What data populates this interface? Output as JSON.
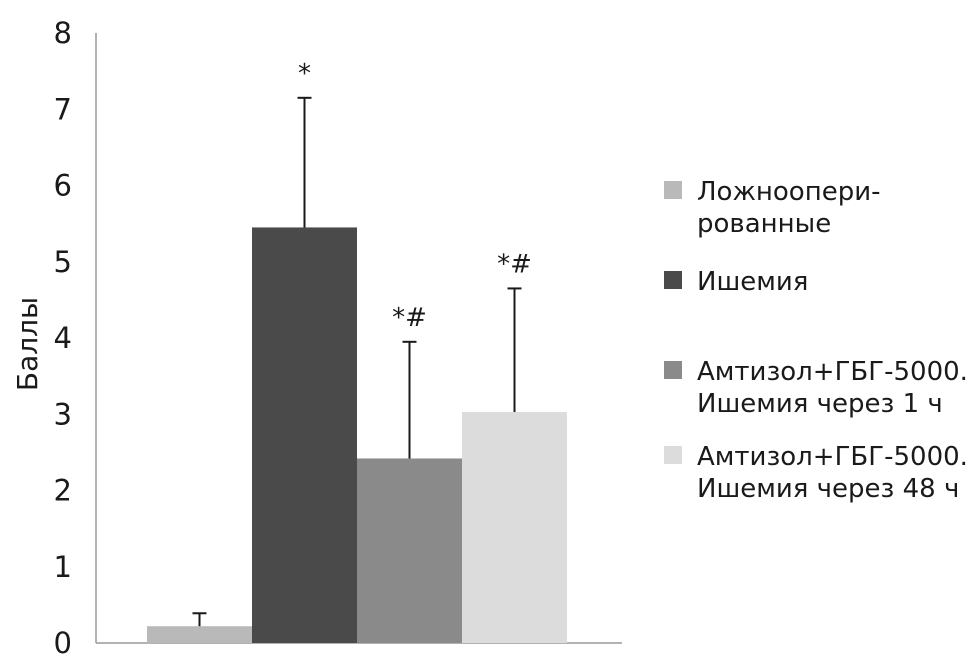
{
  "chart_data": {
    "type": "bar",
    "title": "",
    "xlabel": "",
    "ylabel": "Баллы",
    "ylim": [
      0,
      8
    ],
    "yticks": [
      0,
      1,
      2,
      3,
      4,
      5,
      6,
      7,
      8
    ],
    "grid": false,
    "legend_position": "right",
    "series": [
      {
        "name": "Ложноопери-рованные",
        "legend_lines": [
          "Ложноопери-",
          "рованные"
        ],
        "value": 0.22,
        "error": 0.17,
        "significance": "",
        "color": "#b9b9b9"
      },
      {
        "name": "Ишемия",
        "legend_lines": [
          "Ишемия"
        ],
        "value": 5.45,
        "error": 1.7,
        "significance": "*",
        "color": "#4a4a4a"
      },
      {
        "name": "Амтизол+ГБГ-5000. Ишемия через 1 ч",
        "legend_lines": [
          "Амтизол+ГБГ-5000.",
          "Ишемия через 1 ч"
        ],
        "value": 2.42,
        "error": 1.53,
        "significance": "*#",
        "color": "#8a8a8a"
      },
      {
        "name": "Амтизол+ГБГ-5000. Ишемия через 48 ч",
        "legend_lines": [
          "Амтизол+ГБГ-5000.",
          "Ишемия через 48 ч"
        ],
        "value": 3.03,
        "error": 1.62,
        "significance": "*#",
        "color": "#dcdcdc"
      }
    ]
  }
}
